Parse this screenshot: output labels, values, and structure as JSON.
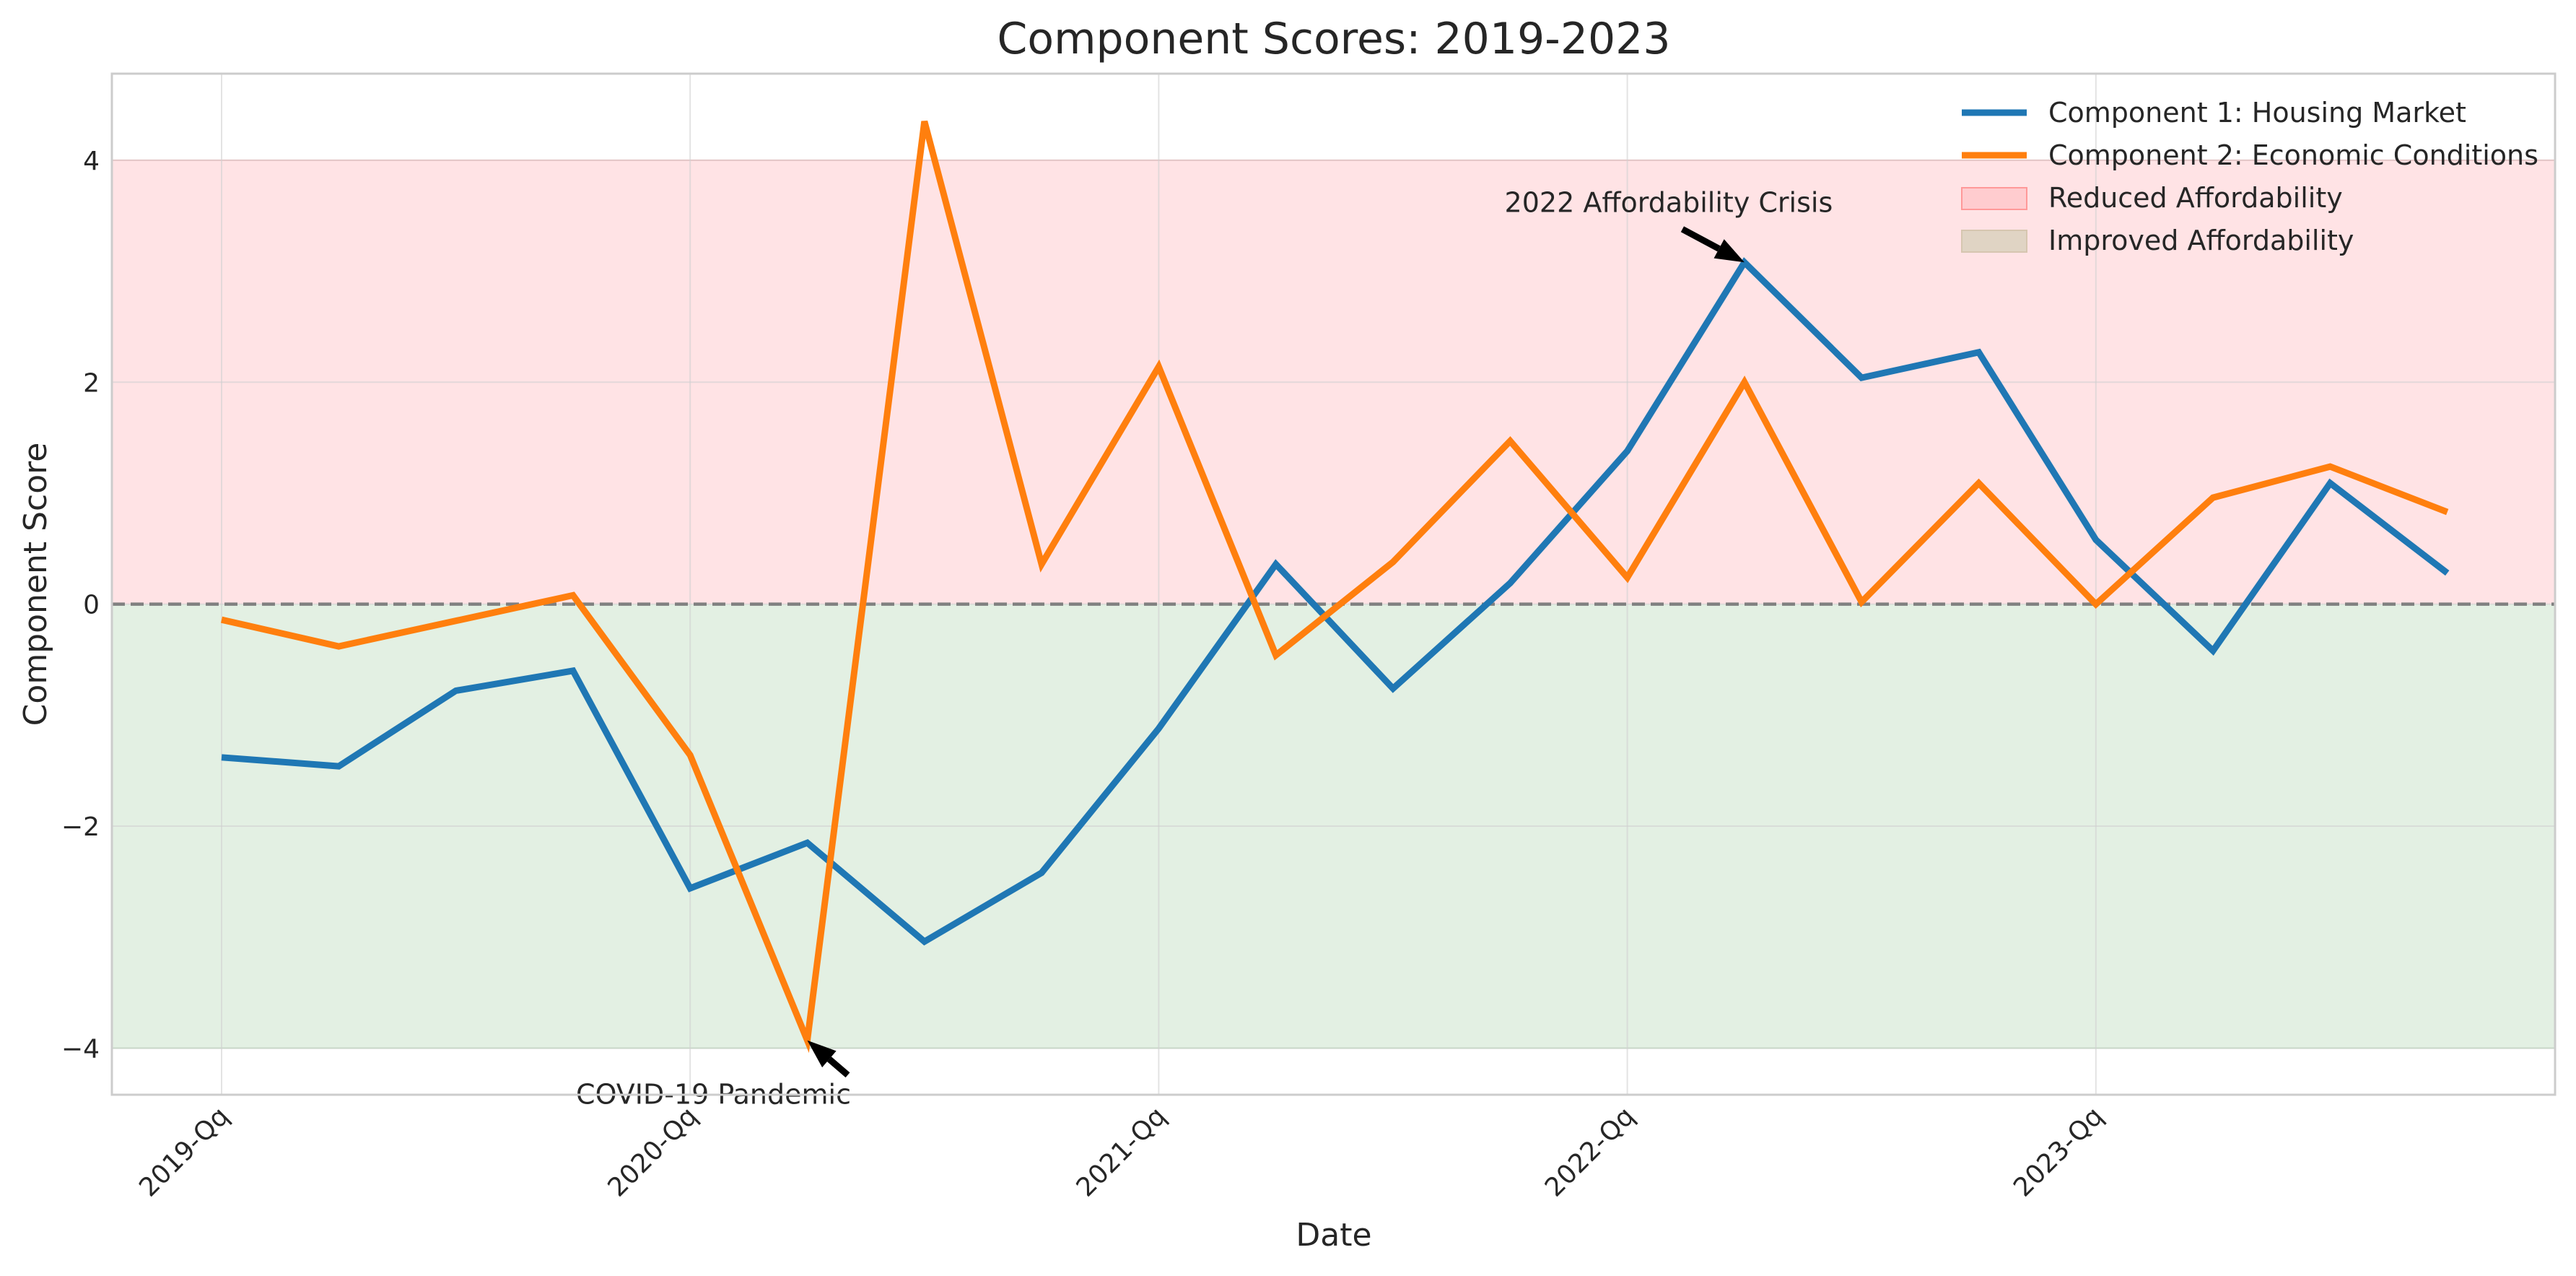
{
  "chart_data": {
    "type": "line",
    "title": "Component Scores: 2019-2023",
    "xlabel": "Date",
    "ylabel": "Component Score",
    "x_categories": [
      "2019-Qq",
      "",
      "",
      "",
      "2020-Qq",
      "",
      "",
      "",
      "2021-Qq",
      "",
      "",
      "",
      "2022-Qq",
      "",
      "",
      "",
      "2023-Qq",
      "",
      "",
      ""
    ],
    "x_tick_labels": [
      "2019-Qq",
      "2020-Qq",
      "2021-Qq",
      "2022-Qq",
      "2023-Qq"
    ],
    "y_ticks": [
      -4,
      -2,
      0,
      2,
      4
    ],
    "y_tick_labels": [
      "−4",
      "−2",
      "0",
      "2",
      "4"
    ],
    "ylim": [
      -4.42,
      4.78
    ],
    "grid": true,
    "legend_position": "top-right",
    "series": [
      {
        "name": "Component 1: Housing Market",
        "color": "#1f77b4",
        "values": [
          -1.38,
          -1.46,
          -0.78,
          -0.6,
          -2.56,
          -2.15,
          -3.04,
          -2.42,
          -1.12,
          0.36,
          -0.76,
          0.19,
          1.38,
          3.08,
          2.04,
          2.27,
          0.58,
          -0.42,
          1.09,
          0.28
        ]
      },
      {
        "name": "Component 2: Economic Conditions",
        "color": "#ff7f0e",
        "values": [
          -0.14,
          -0.38,
          -0.15,
          0.08,
          -1.36,
          -3.93,
          4.35,
          0.36,
          2.14,
          -0.46,
          0.38,
          1.47,
          0.24,
          2.0,
          0.02,
          1.09,
          0.0,
          0.96,
          1.24,
          0.83
        ]
      }
    ],
    "bands": [
      {
        "name": "Reduced Affordability",
        "from": 0,
        "to": 4,
        "color": "#ffcccf"
      },
      {
        "name": "Improved Affordability",
        "from": -4,
        "to": 0,
        "color": "#cce3cc"
      }
    ],
    "reference_line": {
      "y": 0,
      "style": "dashed",
      "color": "#808080"
    },
    "annotations": [
      {
        "text": "COVID-19 Pandemic",
        "x_index": 5,
        "y": -3.93
      },
      {
        "text": "2022 Affordability Crisis",
        "x_index": 13,
        "y": 3.08
      }
    ]
  }
}
